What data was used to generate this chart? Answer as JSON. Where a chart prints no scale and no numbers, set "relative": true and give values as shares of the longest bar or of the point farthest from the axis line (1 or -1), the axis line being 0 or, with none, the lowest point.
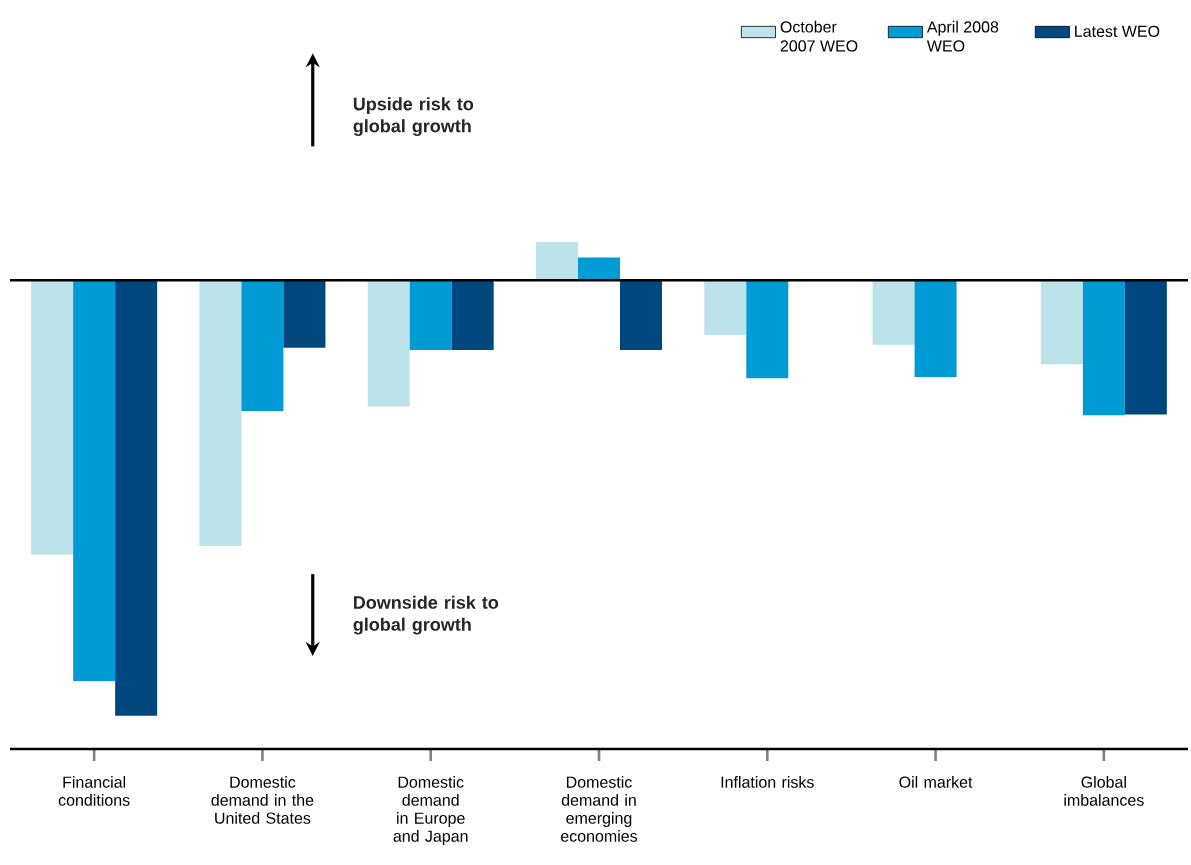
{
  "chart_data": {
    "type": "bar",
    "relative": true,
    "categories": [
      "Financial conditions",
      "Domestic demand in the United States",
      "Domestic demand in Europe and Japan",
      "Domestic demand in emerging economies",
      "Inflation risks",
      "Oil market",
      "Global imbalances"
    ],
    "series": [
      {
        "name": "October 2007 WEO",
        "color": "#bde3ea",
        "values": [
          -0.63,
          -0.61,
          -0.29,
          0.088,
          -0.126,
          -0.148,
          -0.193
        ]
      },
      {
        "name": "April 2008 WEO",
        "color": "#009bd4",
        "values": [
          -0.92,
          -0.3,
          -0.16,
          0.052,
          -0.225,
          -0.222,
          -0.31
        ]
      },
      {
        "name": "Latest WEO",
        "color": "#00467f",
        "values": [
          -1,
          -0.155,
          -0.16,
          -0.16,
          null,
          null,
          -0.308
        ]
      }
    ],
    "legend": "top right",
    "annotations": [
      "Upside risk to global growth",
      "Downside risk to global growth"
    ]
  }
}
